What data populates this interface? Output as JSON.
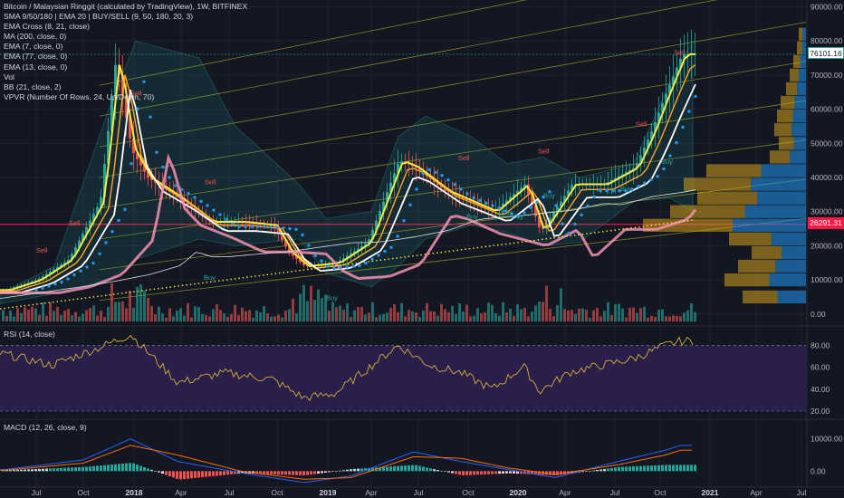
{
  "legend": {
    "title": "Bitcoin / Malaysian Ringgit (calculated by TradingView), 1W, BITFINEX",
    "indicators": [
      "SMA 9/50/180 | EMA 20 | BUY/SELL (9, 50, 180, 20, 3)",
      "EMA Cross (8, 21, close)",
      "MA (200, close, 0)",
      "EMA (7, close, 0)",
      "EMA (77, close, 0)",
      "EMA (13, close, 0)",
      "Vol",
      "BB (21, close, 2)",
      "VPVR (Number Of Rows, 24, Up/Down, 70)"
    ]
  },
  "rsi_title": "RSI (14, close)",
  "macd_title": "MACD (12, 26, close, 9)",
  "price_tags": {
    "last": "76101.16",
    "line": "26291.31"
  },
  "colors": {
    "background": "#131722",
    "up": "#26a69a",
    "down": "#ef5350",
    "rsi_band": "#2a1f4a",
    "rsi_line": "#d4af37",
    "macd_line": "#2962ff",
    "signal_line": "#ff6d00",
    "hline": "#ff1744",
    "ema_yellow": "#ffeb3b",
    "sma_white": "#ffffff",
    "ema_pink": "#f48fb1",
    "dots_blue": "#2196f3"
  },
  "x_axis": [
    "Jul",
    "Oct",
    "2018",
    "Apr",
    "Jul",
    "Oct",
    "2019",
    "Apr",
    "Jul",
    "Oct",
    "2020",
    "Apr",
    "Jul",
    "Oct",
    "2021",
    "Apr",
    "Jul"
  ],
  "signals": [
    "Sell",
    "Sell",
    "Sell",
    "Sell",
    "Sell",
    "Sell",
    "Sell",
    "Sell",
    "Buy",
    "Buy",
    "Buy",
    "Buy",
    "Buy",
    "Buy",
    "Buy",
    "Buy"
  ],
  "chart_data": [
    {
      "type": "line",
      "title": "Bitcoin / Malaysian Ringgit (calculated by TradingView), 1W, BITFINEX",
      "y_ticks": [
        "90000.00",
        "80000.00",
        "70000.00",
        "60000.00",
        "50000.00",
        "40000.00",
        "30000.00",
        "20000.00",
        "10000.00",
        "0.00"
      ],
      "ylim": [
        0,
        92000
      ],
      "x_ticks": [
        "Jul",
        "Oct",
        "2018",
        "Apr",
        "Jul",
        "Oct",
        "2019",
        "Apr",
        "Jul",
        "Oct",
        "2020",
        "Apr",
        "Jul",
        "Oct",
        "2021",
        "Apr",
        "Jul"
      ],
      "series": [
        {
          "name": "close",
          "x": [
            "2017-05",
            "2017-07",
            "2017-09",
            "2017-11",
            "2017-12",
            "2018-01",
            "2018-02",
            "2018-04",
            "2018-06",
            "2018-08",
            "2018-10",
            "2018-11",
            "2018-12",
            "2019-02",
            "2019-04",
            "2019-06",
            "2019-07",
            "2019-09",
            "2019-11",
            "2019-12",
            "2020-02",
            "2020-03",
            "2020-05",
            "2020-07",
            "2020-09",
            "2020-10",
            "2020-11",
            "2020-12"
          ],
          "values": [
            7000,
            10000,
            16000,
            33000,
            75000,
            48000,
            40000,
            34000,
            27000,
            27000,
            26000,
            18000,
            14000,
            15000,
            21000,
            45000,
            43000,
            36000,
            32000,
            30000,
            38000,
            24000,
            38000,
            38000,
            43000,
            53000,
            65000,
            76101
          ]
        }
      ],
      "horizontal_line": 26291.31,
      "last_value": 76101.16
    },
    {
      "type": "line",
      "title": "RSI (14, close)",
      "y_ticks": [
        "80.00",
        "60.00",
        "40.00",
        "20.00"
      ],
      "ylim": [
        15,
        92
      ],
      "bands": [
        80,
        20
      ],
      "series": [
        {
          "name": "RSI",
          "x": [
            "2017-05",
            "2017-08",
            "2017-11",
            "2018-01",
            "2018-04",
            "2018-07",
            "2018-10",
            "2018-12",
            "2019-02",
            "2019-04",
            "2019-06",
            "2019-08",
            "2019-10",
            "2019-12",
            "2020-02",
            "2020-03",
            "2020-05",
            "2020-07",
            "2020-09",
            "2020-11",
            "2020-12"
          ],
          "values": [
            72,
            62,
            78,
            90,
            46,
            55,
            49,
            32,
            36,
            58,
            80,
            62,
            55,
            40,
            61,
            38,
            56,
            62,
            68,
            80,
            84
          ]
        }
      ]
    },
    {
      "type": "bar",
      "title": "MACD (12, 26, close, 9)",
      "y_ticks": [
        "10000.00",
        "0.00"
      ],
      "ylim": [
        -5500,
        13000
      ],
      "series": [
        {
          "name": "MACD",
          "x": [
            "2017-05",
            "2017-10",
            "2018-01",
            "2018-04",
            "2018-08",
            "2018-12",
            "2019-03",
            "2019-07",
            "2019-10",
            "2020-01",
            "2020-04",
            "2020-08",
            "2020-11",
            "2020-12"
          ],
          "values": [
            500,
            3500,
            10000,
            3000,
            -500,
            -3500,
            -1500,
            6000,
            3000,
            500,
            -2000,
            3000,
            6500,
            8000
          ]
        },
        {
          "name": "Signal",
          "x": [
            "2017-05",
            "2017-10",
            "2018-01",
            "2018-04",
            "2018-08",
            "2018-12",
            "2019-03",
            "2019-07",
            "2019-10",
            "2020-01",
            "2020-04",
            "2020-08",
            "2020-11",
            "2020-12"
          ],
          "values": [
            300,
            2500,
            8000,
            5000,
            0,
            -2500,
            -2000,
            4500,
            4000,
            1000,
            -1000,
            2000,
            5000,
            6500
          ]
        }
      ]
    }
  ]
}
